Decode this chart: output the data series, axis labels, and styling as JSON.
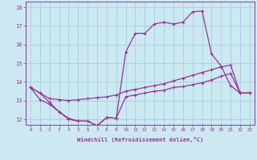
{
  "title": "",
  "xlabel": "Windchill (Refroidissement éolien,°C)",
  "ylabel": "",
  "background_color": "#cce8f0",
  "line_color": "#993399",
  "grid_color": "#99ccdd",
  "xlim": [
    -0.5,
    23.5
  ],
  "ylim": [
    11.7,
    18.3
  ],
  "xticks": [
    0,
    1,
    2,
    3,
    4,
    5,
    6,
    7,
    8,
    9,
    10,
    11,
    12,
    13,
    14,
    15,
    16,
    17,
    18,
    19,
    20,
    21,
    22,
    23
  ],
  "yticks": [
    12,
    13,
    14,
    15,
    16,
    17,
    18
  ],
  "series1_x": [
    0,
    1,
    2,
    3,
    4,
    5,
    6,
    7,
    8,
    9,
    10,
    11,
    12,
    13,
    14,
    15,
    16,
    17,
    18,
    19,
    20,
    21,
    22,
    23
  ],
  "series1_y": [
    13.7,
    13.4,
    12.9,
    12.4,
    12.0,
    11.9,
    11.9,
    11.65,
    12.1,
    12.05,
    15.6,
    16.6,
    16.6,
    17.1,
    17.2,
    17.1,
    17.2,
    17.75,
    17.8,
    15.5,
    14.85,
    13.8,
    13.4,
    13.4
  ],
  "series2_x": [
    0,
    1,
    2,
    3,
    4,
    5,
    6,
    7,
    8,
    9,
    10,
    11,
    12,
    13,
    14,
    15,
    16,
    17,
    18,
    19,
    20,
    21,
    22,
    23
  ],
  "series2_y": [
    13.7,
    13.4,
    13.1,
    13.05,
    13.0,
    13.05,
    13.1,
    13.15,
    13.2,
    13.3,
    13.5,
    13.6,
    13.7,
    13.8,
    13.9,
    14.05,
    14.2,
    14.35,
    14.5,
    14.65,
    14.8,
    14.9,
    13.4,
    13.4
  ],
  "series3_x": [
    0,
    1,
    2,
    3,
    4,
    5,
    6,
    7,
    8,
    9,
    10,
    11,
    12,
    13,
    14,
    15,
    16,
    17,
    18,
    19,
    20,
    21,
    22,
    23
  ],
  "series3_y": [
    13.7,
    13.05,
    12.8,
    12.4,
    12.05,
    11.9,
    11.9,
    11.65,
    12.1,
    12.05,
    13.2,
    13.3,
    13.4,
    13.5,
    13.55,
    13.7,
    13.75,
    13.85,
    13.95,
    14.1,
    14.3,
    14.45,
    13.4,
    13.4
  ]
}
